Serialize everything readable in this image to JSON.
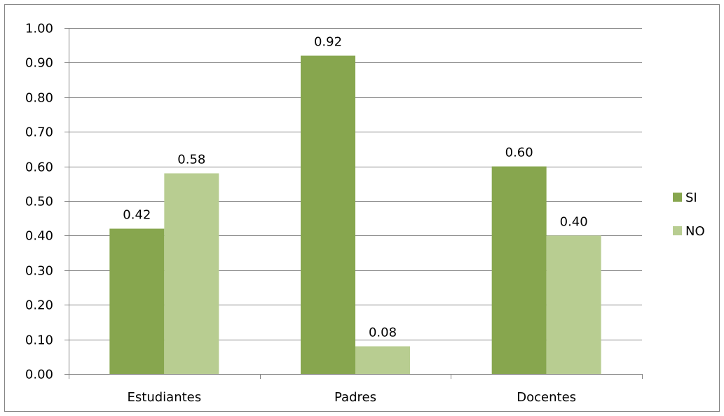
{
  "chart_data": {
    "type": "bar",
    "categories": [
      "Estudiantes",
      "Padres",
      "Docentes"
    ],
    "series": [
      {
        "name": "SI",
        "values": [
          0.42,
          0.92,
          0.6
        ],
        "color": "#87A64E"
      },
      {
        "name": "NO",
        "values": [
          0.58,
          0.08,
          0.4
        ],
        "color": "#B8CD91"
      }
    ],
    "data_labels": [
      [
        "0.42",
        "0.92",
        "0.60"
      ],
      [
        "0.58",
        "0.08",
        "0.40"
      ]
    ],
    "ylim": [
      0,
      1
    ],
    "yticks": [
      0,
      0.1,
      0.2,
      0.3,
      0.4,
      0.5,
      0.6,
      0.7,
      0.8,
      0.9,
      1.0
    ],
    "ytick_labels": [
      "0.00",
      "0.10",
      "0.20",
      "0.30",
      "0.40",
      "0.50",
      "0.60",
      "0.70",
      "0.80",
      "0.90",
      "1.00"
    ],
    "grid": true,
    "legend_position": "right",
    "title": "",
    "xlabel": "",
    "ylabel": "",
    "gridline_color": "#868686",
    "axis_color": "#868686"
  }
}
